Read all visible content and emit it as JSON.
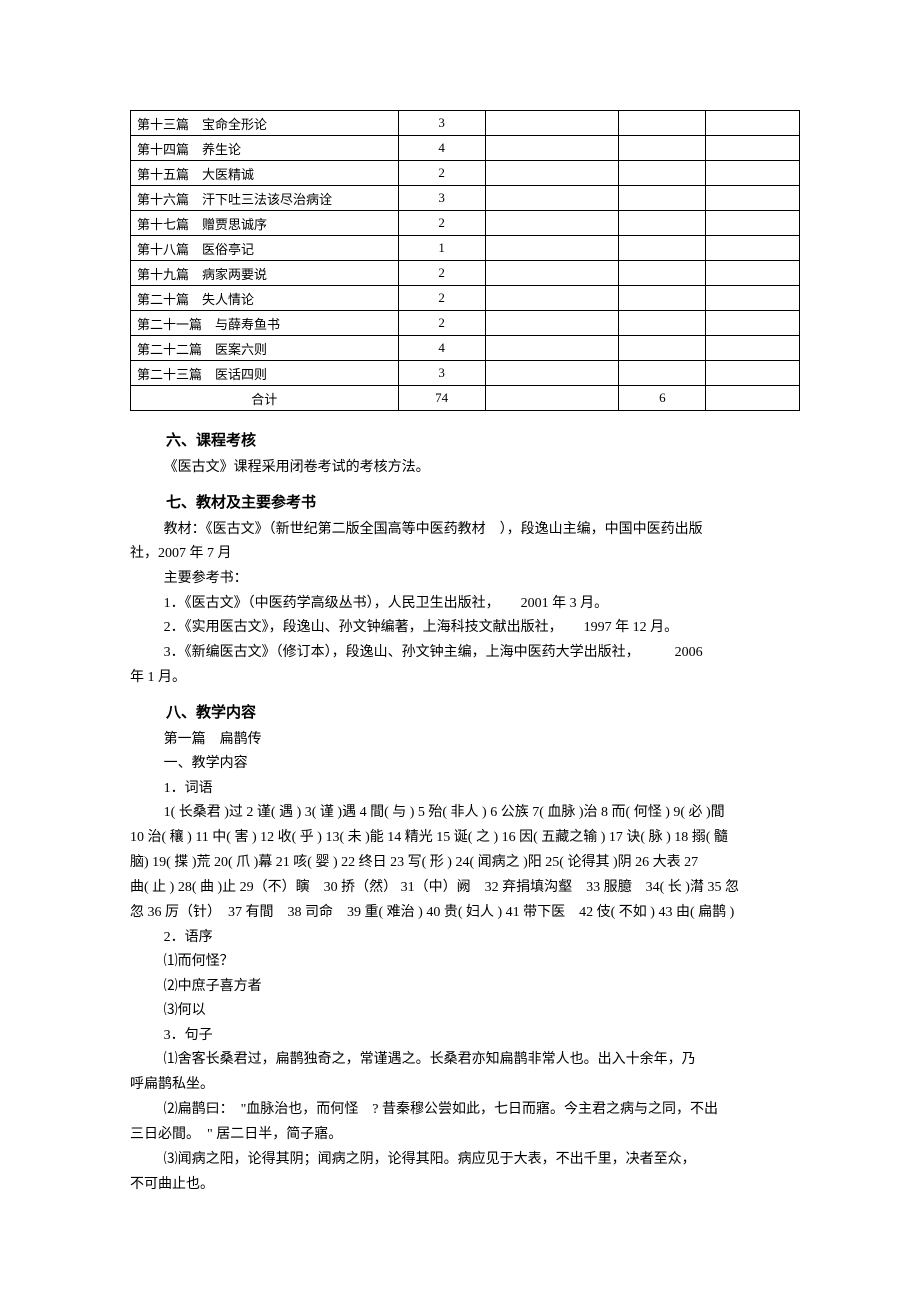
{
  "table": {
    "rows": [
      {
        "c1": "第十三篇　宝命全形论",
        "c2": "3",
        "c3": "",
        "c4": "",
        "c5": ""
      },
      {
        "c1": "第十四篇　养生论",
        "c2": "4",
        "c3": "",
        "c4": "",
        "c5": ""
      },
      {
        "c1": "第十五篇　大医精诚",
        "c2": "2",
        "c3": "",
        "c4": "",
        "c5": ""
      },
      {
        "c1": "第十六篇　汗下吐三法该尽治病诠",
        "c2": "3",
        "c3": "",
        "c4": "",
        "c5": ""
      },
      {
        "c1": "第十七篇　赠贾思诚序",
        "c2": "2",
        "c3": "",
        "c4": "",
        "c5": ""
      },
      {
        "c1": "第十八篇　医俗亭记",
        "c2": "1",
        "c3": "",
        "c4": "",
        "c5": ""
      },
      {
        "c1": "第十九篇　病家两要说",
        "c2": "2",
        "c3": "",
        "c4": "",
        "c5": ""
      },
      {
        "c1": "第二十篇　失人情论",
        "c2": "2",
        "c3": "",
        "c4": "",
        "c5": ""
      },
      {
        "c1": "第二十一篇　与薛寿鱼书",
        "c2": "2",
        "c3": "",
        "c4": "",
        "c5": ""
      },
      {
        "c1": "第二十二篇　医案六则",
        "c2": "4",
        "c3": "",
        "c4": "",
        "c5": ""
      },
      {
        "c1": "第二十三篇　医话四则",
        "c2": "3",
        "c3": "",
        "c4": "",
        "c5": ""
      }
    ],
    "total": {
      "c1": "合计",
      "c2": "74",
      "c3": "",
      "c4": "6",
      "c5": ""
    }
  },
  "s6": {
    "heading": "六、课程考核",
    "p1": "《医古文》课程采用闭卷考试的考核方法。"
  },
  "s7": {
    "heading": "七、教材及主要参考书",
    "p1a": "教材：《医古文》（新世纪第二版全国高等中医药教材　），段逸山主编，中国中医药出版",
    "p1b": "社，2007 年 7 月",
    "p2": "主要参考书：",
    "b1": "1．《医古文》（中医药学高级丛书），人民卫生出版社，　　2001 年 3 月。",
    "b2": "2．《实用医古文》，段逸山、孙文钟编著，上海科技文献出版社，　　1997 年 12 月。",
    "b3a": "3．《新编医古文》（修订本），段逸山、孙文钟主编，上海中医药大学出版社，　　　2006",
    "b3b": "年 1 月。"
  },
  "s8": {
    "heading": "八、教学内容",
    "t1": "第一篇　扁鹊传",
    "t2": "一、教学内容",
    "t3": "1．词语",
    "vocab_a": "1( 长桑君 )过  2 谨( 遇 ) 3( 谨 )遇  4 間( 与 ) 5 殆( 非人 ) 6 公族  7( 血脉 )治  8 而( 何怪 ) 9( 必 )間",
    "vocab_b": "10 治( 穰 ) 11 中( 害 ) 12 收( 乎 ) 13( 未 )能  14 精光  15 诞( 之 ) 16 因( 五藏之输 ) 17 诀( 脉 ) 18 搦( 髓",
    "vocab_c": "脑) 19( 揲 )荒  20( 爪 )幕  21 咳( 婴 ) 22 终日  23 写( 形 )  24( 闻病之 )阳  25( 论得其 )阴  26 大表  27",
    "vocab_d": "曲( 止 )  28( 曲 )止  29（不）瞚　30 挢（然） 31（中）阙　32 弃捐填沟壑　33 服臆　34( 长 )潸  35 忽",
    "vocab_e": "忽  36 厉（针）　37 有間　38 司命　39 重( 难治 ) 40 贵( 妇人 ) 41 带下医　42 伎( 不如 ) 43 由( 扁鹊 )",
    "t4": "2．语序",
    "o1": "⑴而何怪？",
    "o2": "⑵中庶子喜方者",
    "o3": "⑶何以",
    "t5": "3．句子",
    "s1a": "⑴舍客长桑君过，扁鹊独奇之，常谨遇之。长桑君亦知扁鹊非常人也。出入十余年，乃",
    "s1b": "呼扁鹊私坐。",
    "s2a": "⑵扁鹊曰：　\"血脉治也，而何怪　? 昔秦穆公尝如此，七日而寤。今主君之病与之同，不出",
    "s2b": "三日必間。　\" 居二日半，简子寤。",
    "s3a": "⑶闻病之阳，论得其阴；闻病之阴，论得其阳。病应见于大表，不出千里，决者至众，",
    "s3b": "不可曲止也。"
  }
}
